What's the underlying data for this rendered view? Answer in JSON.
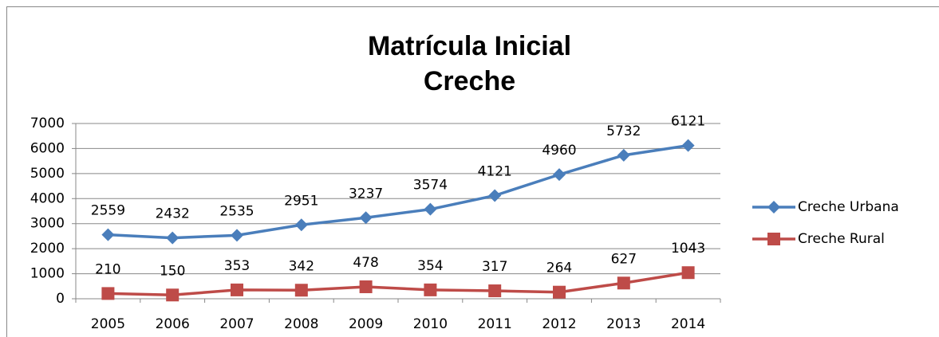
{
  "chart_data": {
    "type": "line",
    "title": "Matrícula Inicial Creche",
    "categories": [
      "2005",
      "2006",
      "2007",
      "2008",
      "2009",
      "2010",
      "2011",
      "2012",
      "2013",
      "2014"
    ],
    "series": [
      {
        "name": "Creche Urbana",
        "color": "#4a7ebb",
        "marker": "diamond",
        "values": [
          2559,
          2432,
          2535,
          2951,
          3237,
          3574,
          4121,
          4960,
          5732,
          6121
        ]
      },
      {
        "name": "Creche Rural",
        "color": "#be4b48",
        "marker": "square",
        "values": [
          210,
          150,
          353,
          342,
          478,
          354,
          317,
          264,
          627,
          1043
        ]
      }
    ],
    "ylim": [
      0,
      7000
    ],
    "yticks": [
      0,
      1000,
      2000,
      3000,
      4000,
      5000,
      6000,
      7000
    ],
    "grid": true,
    "legend": "right"
  }
}
